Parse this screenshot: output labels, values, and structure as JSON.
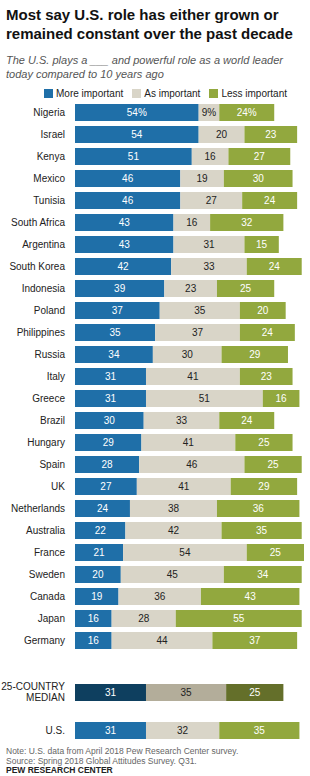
{
  "chart_data": {
    "type": "bar",
    "orientation": "horizontal",
    "stacked": true,
    "data_labels": true,
    "tick_labels": "y",
    "legend": "top",
    "title": "Most say U.S. role has either grown or remained constant over the past decade",
    "subtitle": "The U.S. plays a ___ and powerful role as a world leader today compared to 10 years ago",
    "note": "Note: U.S. data from April 2018 Pew Research Center survey.",
    "source": "Source: Spring 2018 Global Attitudes Survey. Q31.",
    "credit": "PEW RESEARCH CENTER",
    "xlim": [
      0,
      100
    ],
    "categories": [
      "Nigeria",
      "Israel",
      "Kenya",
      "Mexico",
      "Tunisia",
      "South Africa",
      "Argentina",
      "South Korea",
      "Indonesia",
      "Poland",
      "Philippines",
      "Russia",
      "Italy",
      "Greece",
      "Brazil",
      "Hungary",
      "Spain",
      "UK",
      "Netherlands",
      "Australia",
      "France",
      "Sweden",
      "Canada",
      "Japan",
      "Germany",
      "25-COUNTRY MEDIAN",
      "U.S."
    ],
    "series": [
      {
        "name": "More important",
        "color": "#1f6fa8",
        "colors": [
          "#1f6fa8",
          "#1f6fa8",
          "#1f6fa8",
          "#1f6fa8",
          "#1f6fa8",
          "#1f6fa8",
          "#1f6fa8",
          "#1f6fa8",
          "#1f6fa8",
          "#1f6fa8",
          "#1f6fa8",
          "#1f6fa8",
          "#1f6fa8",
          "#1f6fa8",
          "#1f6fa8",
          "#1f6fa8",
          "#1f6fa8",
          "#1f6fa8",
          "#1f6fa8",
          "#1f6fa8",
          "#1f6fa8",
          "#1f6fa8",
          "#1f6fa8",
          "#1f6fa8",
          "#1f6fa8",
          "#0e3f5f",
          "#1f6fa8"
        ],
        "values": [
          54,
          54,
          51,
          46,
          46,
          43,
          43,
          42,
          39,
          37,
          35,
          34,
          31,
          31,
          30,
          29,
          28,
          27,
          24,
          22,
          21,
          20,
          19,
          16,
          16,
          31,
          31
        ],
        "value_labels": [
          "54%",
          "54",
          "51",
          "46",
          "46",
          "43",
          "43",
          "42",
          "39",
          "37",
          "35",
          "34",
          "31",
          "31",
          "30",
          "29",
          "28",
          "27",
          "24",
          "22",
          "21",
          "20",
          "19",
          "16",
          "16",
          "31",
          "31"
        ]
      },
      {
        "name": "As important",
        "color": "#d9d5c8",
        "colors": [
          "#d9d5c8",
          "#d9d5c8",
          "#d9d5c8",
          "#d9d5c8",
          "#d9d5c8",
          "#d9d5c8",
          "#d9d5c8",
          "#d9d5c8",
          "#d9d5c8",
          "#d9d5c8",
          "#d9d5c8",
          "#d9d5c8",
          "#d9d5c8",
          "#d9d5c8",
          "#d9d5c8",
          "#d9d5c8",
          "#d9d5c8",
          "#d9d5c8",
          "#d9d5c8",
          "#d9d5c8",
          "#d9d5c8",
          "#d9d5c8",
          "#d9d5c8",
          "#d9d5c8",
          "#d9d5c8",
          "#b3ad9a",
          "#d9d5c8"
        ],
        "values": [
          9,
          20,
          16,
          19,
          27,
          16,
          31,
          33,
          23,
          35,
          37,
          30,
          41,
          51,
          33,
          41,
          46,
          41,
          38,
          42,
          54,
          45,
          36,
          28,
          44,
          35,
          32
        ],
        "value_labels": [
          "9%",
          "20",
          "16",
          "19",
          "27",
          "16",
          "31",
          "33",
          "23",
          "35",
          "37",
          "30",
          "41",
          "51",
          "33",
          "41",
          "46",
          "41",
          "38",
          "42",
          "54",
          "45",
          "36",
          "28",
          "44",
          "35",
          "32"
        ]
      },
      {
        "name": "Less important",
        "color": "#92a83e",
        "colors": [
          "#92a83e",
          "#92a83e",
          "#92a83e",
          "#92a83e",
          "#92a83e",
          "#92a83e",
          "#92a83e",
          "#92a83e",
          "#92a83e",
          "#92a83e",
          "#92a83e",
          "#92a83e",
          "#92a83e",
          "#92a83e",
          "#92a83e",
          "#92a83e",
          "#92a83e",
          "#92a83e",
          "#92a83e",
          "#92a83e",
          "#92a83e",
          "#92a83e",
          "#92a83e",
          "#92a83e",
          "#92a83e",
          "#646f2a",
          "#92a83e"
        ],
        "values": [
          24,
          23,
          27,
          30,
          24,
          32,
          15,
          24,
          25,
          20,
          24,
          29,
          23,
          16,
          24,
          25,
          25,
          29,
          36,
          35,
          25,
          34,
          43,
          55,
          37,
          25,
          35
        ],
        "value_labels": [
          "24%",
          "23",
          "27",
          "30",
          "24",
          "32",
          "15",
          "24",
          "25",
          "20",
          "24",
          "29",
          "23",
          "16",
          "24",
          "25",
          "25",
          "29",
          "36",
          "35",
          "25",
          "34",
          "43",
          "55",
          "37",
          "25",
          "35"
        ]
      }
    ]
  }
}
